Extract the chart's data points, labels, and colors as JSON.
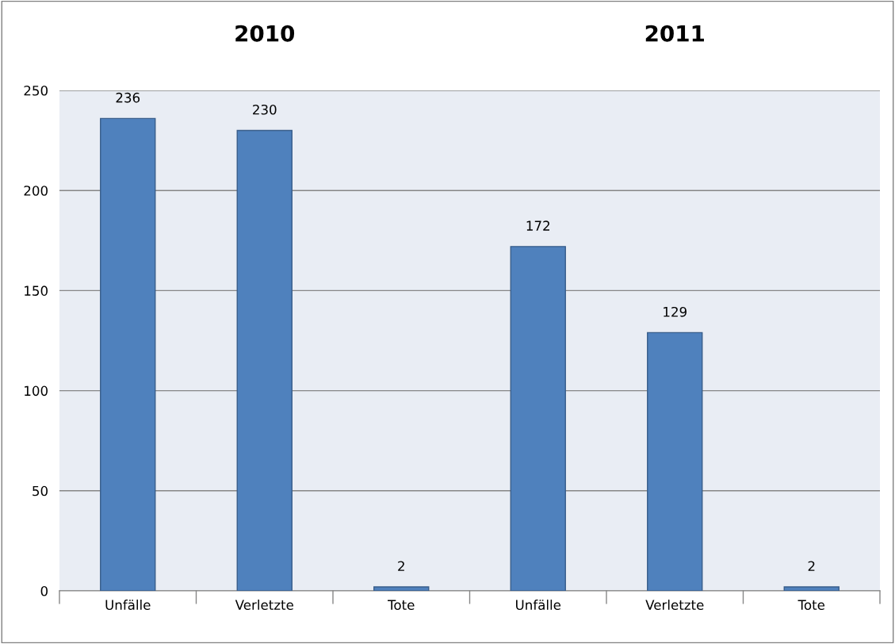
{
  "chart_data": {
    "type": "bar",
    "categories": [
      "Unfälle",
      "Verletzte",
      "Tote",
      "Unfälle",
      "Verletzte",
      "Tote"
    ],
    "values": [
      236,
      230,
      2,
      172,
      129,
      2
    ],
    "color": "#4f81bd",
    "ylim": [
      0,
      250
    ],
    "yticks": [
      0,
      50,
      100,
      150,
      200,
      250
    ],
    "grid": "y",
    "data_labels": true,
    "legend": false,
    "annotations": [
      "2010",
      "2011"
    ]
  }
}
